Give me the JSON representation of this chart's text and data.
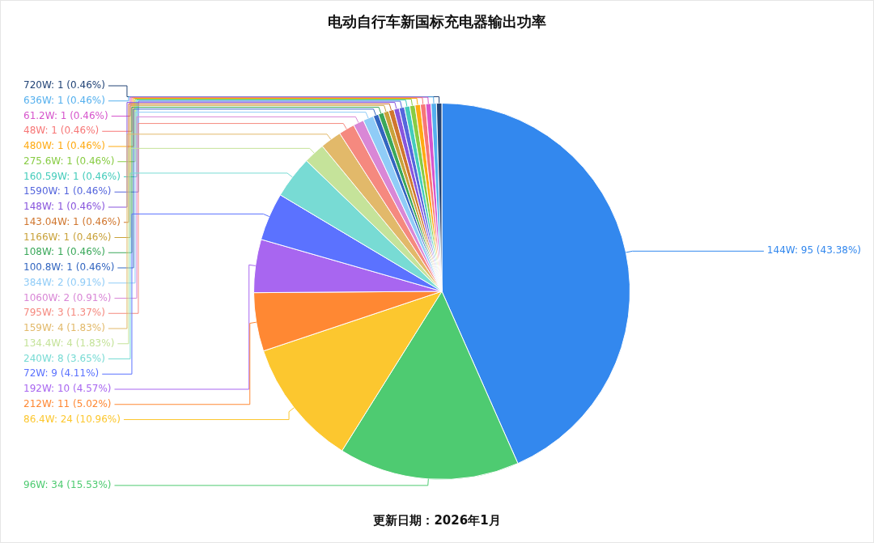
{
  "chart_data": {
    "type": "pie",
    "title": "电动自行车新国标充电器输出功率",
    "categories": [
      "144W",
      "96W",
      "86.4W",
      "212W",
      "192W",
      "72W",
      "240W",
      "134.4W",
      "159W",
      "795W",
      "1060W",
      "384W",
      "100.8W",
      "108W",
      "1166W",
      "143.04W",
      "148W",
      "1590W",
      "160.59W",
      "275.6W",
      "480W",
      "48W",
      "61.2W",
      "636W",
      "720W"
    ],
    "values": [
      95,
      34,
      24,
      11,
      10,
      9,
      8,
      4,
      4,
      3,
      2,
      2,
      1,
      1,
      1,
      1,
      1,
      1,
      1,
      1,
      1,
      1,
      1,
      1,
      1
    ],
    "colors": [
      "#3388ee",
      "#4ecb71",
      "#fcc72f",
      "#ff8833",
      "#a866f0",
      "#5b72ff",
      "#78dbd4",
      "#c5e39a",
      "#e2b96a",
      "#f5897f",
      "#d987d6",
      "#90ccf7",
      "#3366c0",
      "#3aa85a",
      "#c9a23a",
      "#d0762e",
      "#8855dd",
      "#5566dd",
      "#44ccbb",
      "#88cc44",
      "#ffaa11",
      "#f77777",
      "#d655cc",
      "#55b0ee",
      "#224477"
    ],
    "value_labels": [
      "95 (43.38%)",
      "34 (15.53%)",
      "24 (10.96%)",
      "11 (5.02%)",
      "10 (4.57%)",
      "9 (4.11%)",
      "8 (3.65%)",
      "4 (1.83%)",
      "4 (1.83%)",
      "3 (1.37%)",
      "2 (0.91%)",
      "2 (0.91%)",
      "1 (0.46%)",
      "1 (0.46%)",
      "1 (0.46%)",
      "1 (0.46%)",
      "1 (0.46%)",
      "1 (0.46%)",
      "1 (0.46%)",
      "1 (0.46%)",
      "1 (0.46%)",
      "1 (0.46%)",
      "1 (0.46%)",
      "1 (0.46%)",
      "1 (0.46%)"
    ],
    "annotations": [
      "更新日期：2026年1月"
    ]
  }
}
